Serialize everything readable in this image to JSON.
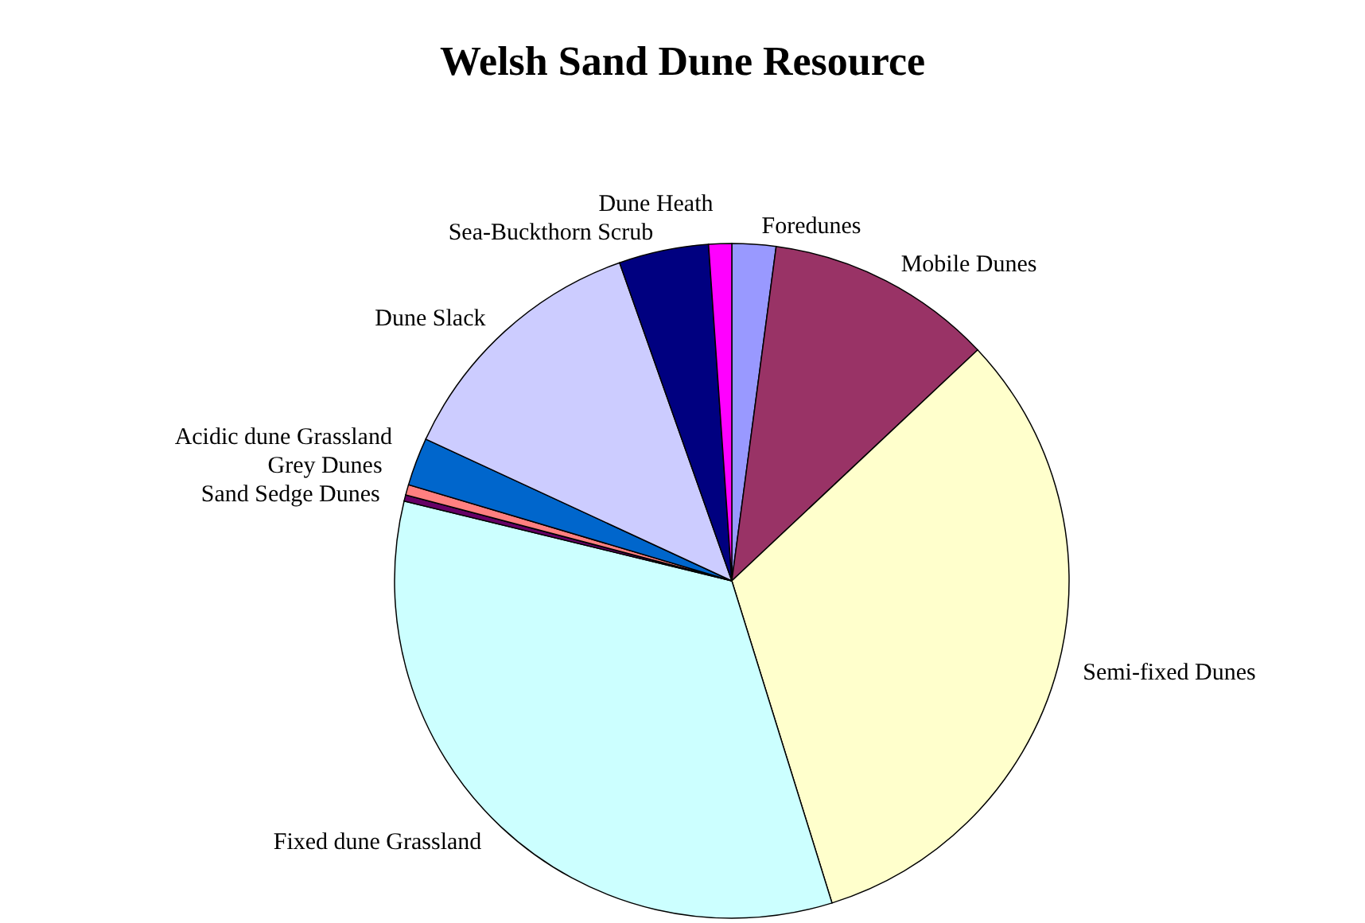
{
  "chart_data": {
    "type": "pie",
    "title": "Welsh Sand Dune Resource",
    "categories": [
      "Foredunes",
      "Mobile Dunes",
      "Semi-fixed Dunes",
      "Fixed dune Grassland",
      "Sand Sedge Dunes",
      "Grey Dunes",
      "Acidic dune Grassland",
      "Dune Slack",
      "Sea-Buckthorn Scrub",
      "Dune Heath"
    ],
    "values": [
      2.1,
      10.9,
      32.2,
      33.6,
      0.3,
      0.5,
      2.3,
      12.7,
      4.3,
      1.1
    ],
    "colors": [
      "#9999ff",
      "#993366",
      "#ffffcc",
      "#ccffff",
      "#660066",
      "#ff8080",
      "#0066cc",
      "#ccccff",
      "#000080",
      "#ff00ff"
    ]
  }
}
